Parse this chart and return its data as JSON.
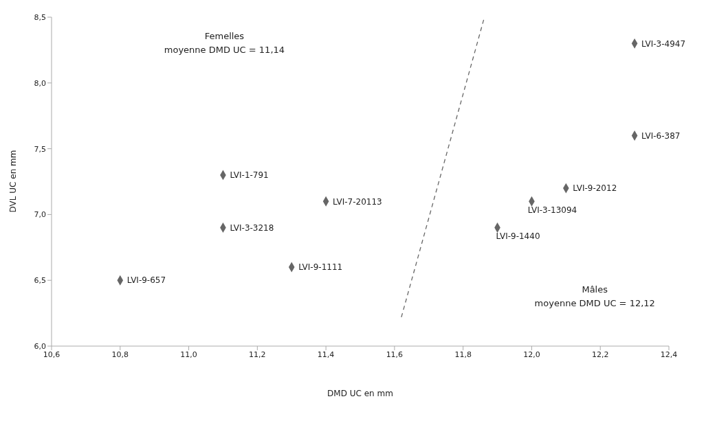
{
  "chart_data": {
    "type": "scatter",
    "xlabel": "DMD UC en mm",
    "ylabel": "DVL UC en mm",
    "xlim": [
      10.6,
      12.4
    ],
    "xticks": [
      {
        "value": 10.6,
        "label": "10,6"
      },
      {
        "value": 10.8,
        "label": "10,8"
      },
      {
        "value": 11.0,
        "label": "11,0"
      },
      {
        "value": 11.2,
        "label": "11,2"
      },
      {
        "value": 11.4,
        "label": "11,4"
      },
      {
        "value": 11.6,
        "label": "11,6"
      },
      {
        "value": 11.8,
        "label": "11,8"
      },
      {
        "value": 12.0,
        "label": "12,0"
      },
      {
        "value": 12.2,
        "label": "12,2"
      },
      {
        "value": 12.4,
        "label": "12,4"
      }
    ],
    "ylim": [
      6.0,
      8.5
    ],
    "yticks": [
      {
        "value": 6.0,
        "label": "6,0"
      },
      {
        "value": 6.5,
        "label": "6,5"
      },
      {
        "value": 7.0,
        "label": "7,0"
      },
      {
        "value": 7.5,
        "label": "7,5"
      },
      {
        "value": 8.0,
        "label": "8,0"
      },
      {
        "value": 8.5,
        "label": "8,5"
      }
    ],
    "grid": false,
    "legend": false,
    "marker": "diamond",
    "series": [
      {
        "color": "#666666",
        "x": [
          10.8,
          11.1,
          11.1,
          11.3,
          11.4,
          11.9,
          12.0,
          12.1,
          12.3,
          12.3
        ],
        "values": [
          6.5,
          7.3,
          6.9,
          6.6,
          7.1,
          6.9,
          7.1,
          7.2,
          7.6,
          8.3
        ]
      },
      {
        "type": "line",
        "color": "#666666",
        "line_style": "dashed",
        "marker": "none",
        "x": [
          11.62,
          11.86
        ],
        "values": [
          6.22,
          8.48
        ]
      }
    ],
    "annotations": [
      "Femelles\nmoyenne DMD UC = 11,14",
      "Mâles\nmoyenne DMD UC = 12,12",
      {
        "text": "LVI-9-657",
        "x": 10.8,
        "y": 6.5
      },
      {
        "text": "LVI-1-791",
        "x": 11.1,
        "y": 7.3
      },
      {
        "text": "LVI-3-3218",
        "x": 11.1,
        "y": 6.9
      },
      {
        "text": "LVI-9-1111",
        "x": 11.3,
        "y": 6.6
      },
      {
        "text": "LVI-7-20113",
        "x": 11.4,
        "y": 7.1
      },
      {
        "text": "LVI-9-1440",
        "x": 11.9,
        "y": 6.9
      },
      {
        "text": "LVI-3-13094",
        "x": 12.0,
        "y": 7.1
      },
      {
        "text": "LVI-9-2012",
        "x": 12.1,
        "y": 7.2
      },
      {
        "text": "LVI-6-387",
        "x": 12.3,
        "y": 7.6
      },
      {
        "text": "LVI-3-4947",
        "x": 12.3,
        "y": 8.3
      }
    ]
  }
}
